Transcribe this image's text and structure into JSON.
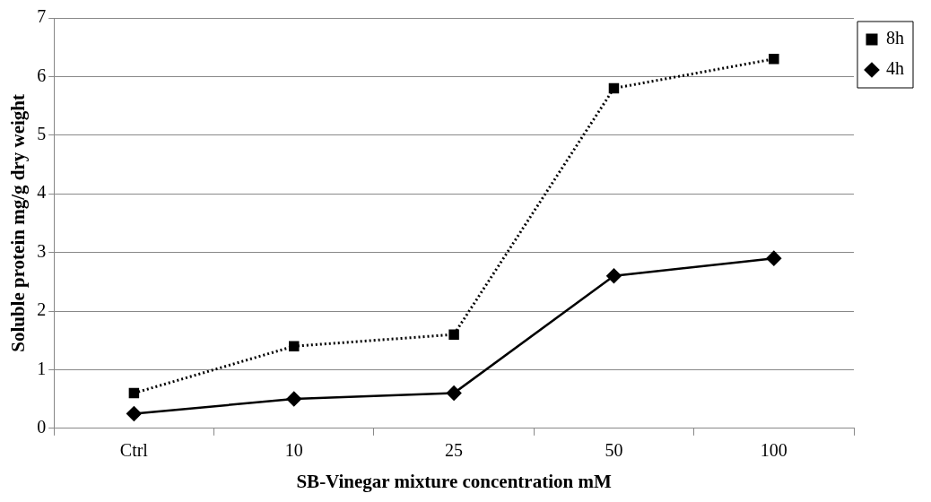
{
  "chart_data": {
    "type": "line",
    "xlabel": "SB-Vinegar mixture concentration mM",
    "ylabel": "Soluble protein mg/g dry weight",
    "categories": [
      "Ctrl",
      "10",
      "25",
      "50",
      "100"
    ],
    "series": [
      {
        "name": "8h",
        "color": "#000000",
        "values": [
          0.6,
          1.4,
          1.6,
          5.8,
          6.3
        ],
        "marker": "square",
        "line_style": "dotted"
      },
      {
        "name": "4h",
        "color": "#000000",
        "values": [
          0.25,
          0.5,
          0.6,
          2.6,
          2.9
        ],
        "marker": "diamond",
        "line_style": "solid"
      }
    ],
    "ylim": [
      0,
      7
    ],
    "yticks": [
      0,
      1,
      2,
      3,
      4,
      5,
      6,
      7
    ],
    "grid": "y",
    "legend": "top right"
  }
}
